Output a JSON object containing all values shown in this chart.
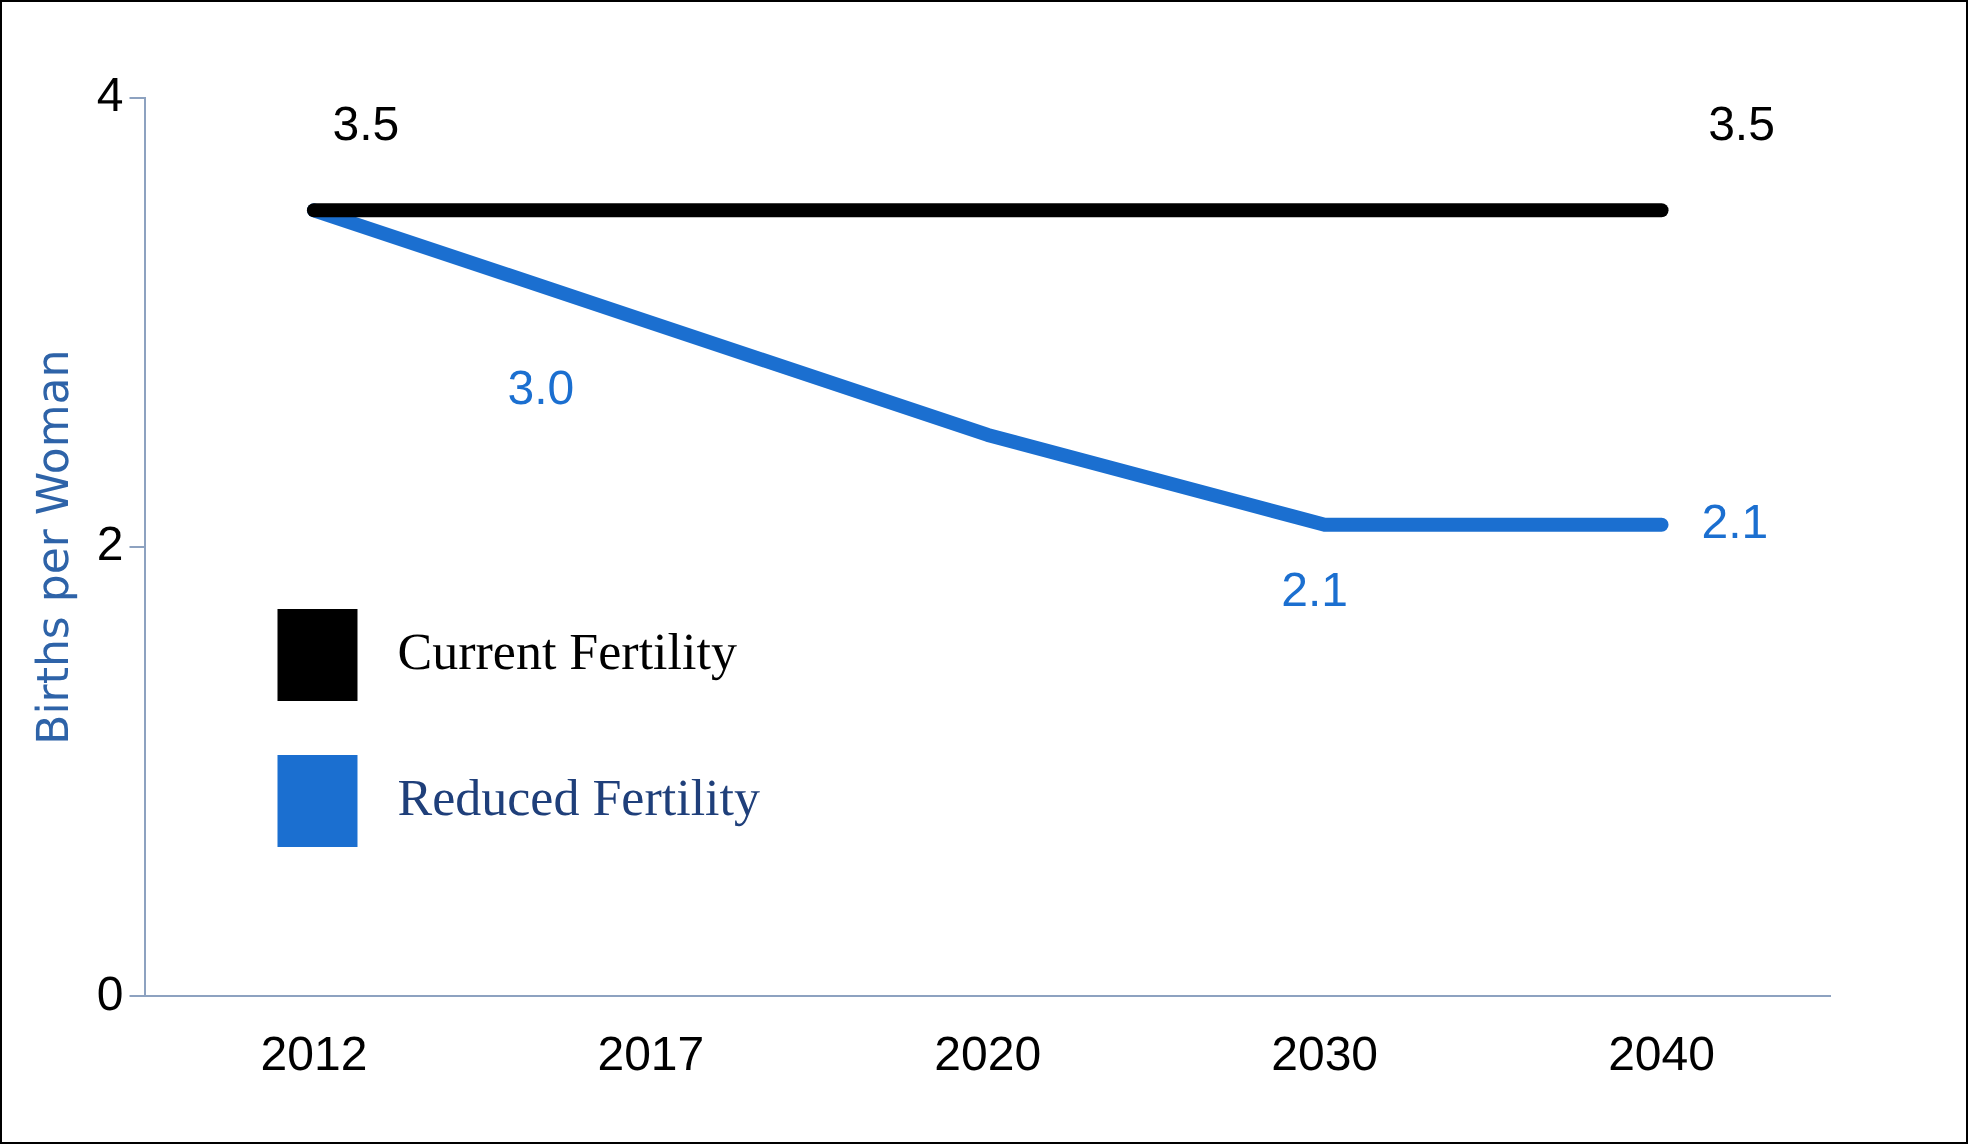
{
  "chart_data": {
    "type": "line",
    "ylabel": "Births per Woman",
    "categories": [
      "2012",
      "2017",
      "2020",
      "2030",
      "2040"
    ],
    "series": [
      {
        "name": "Current Fertility",
        "color": "#000000",
        "values": [
          3.5,
          3.5,
          3.5,
          3.5,
          3.5
        ],
        "value_labels": [
          "3.5",
          null,
          null,
          null,
          "3.5"
        ]
      },
      {
        "name": "Reduced Fertility",
        "color": "#1b6fd0",
        "values": [
          3.5,
          3.0,
          2.5,
          2.1,
          2.1
        ],
        "value_labels": [
          null,
          "3.0",
          null,
          "2.1",
          "2.1"
        ]
      }
    ],
    "ylim": [
      0,
      4
    ],
    "yticks": [
      0,
      2,
      4
    ],
    "grid": false,
    "legend": "left",
    "marker": "none",
    "line_style": "solid"
  }
}
